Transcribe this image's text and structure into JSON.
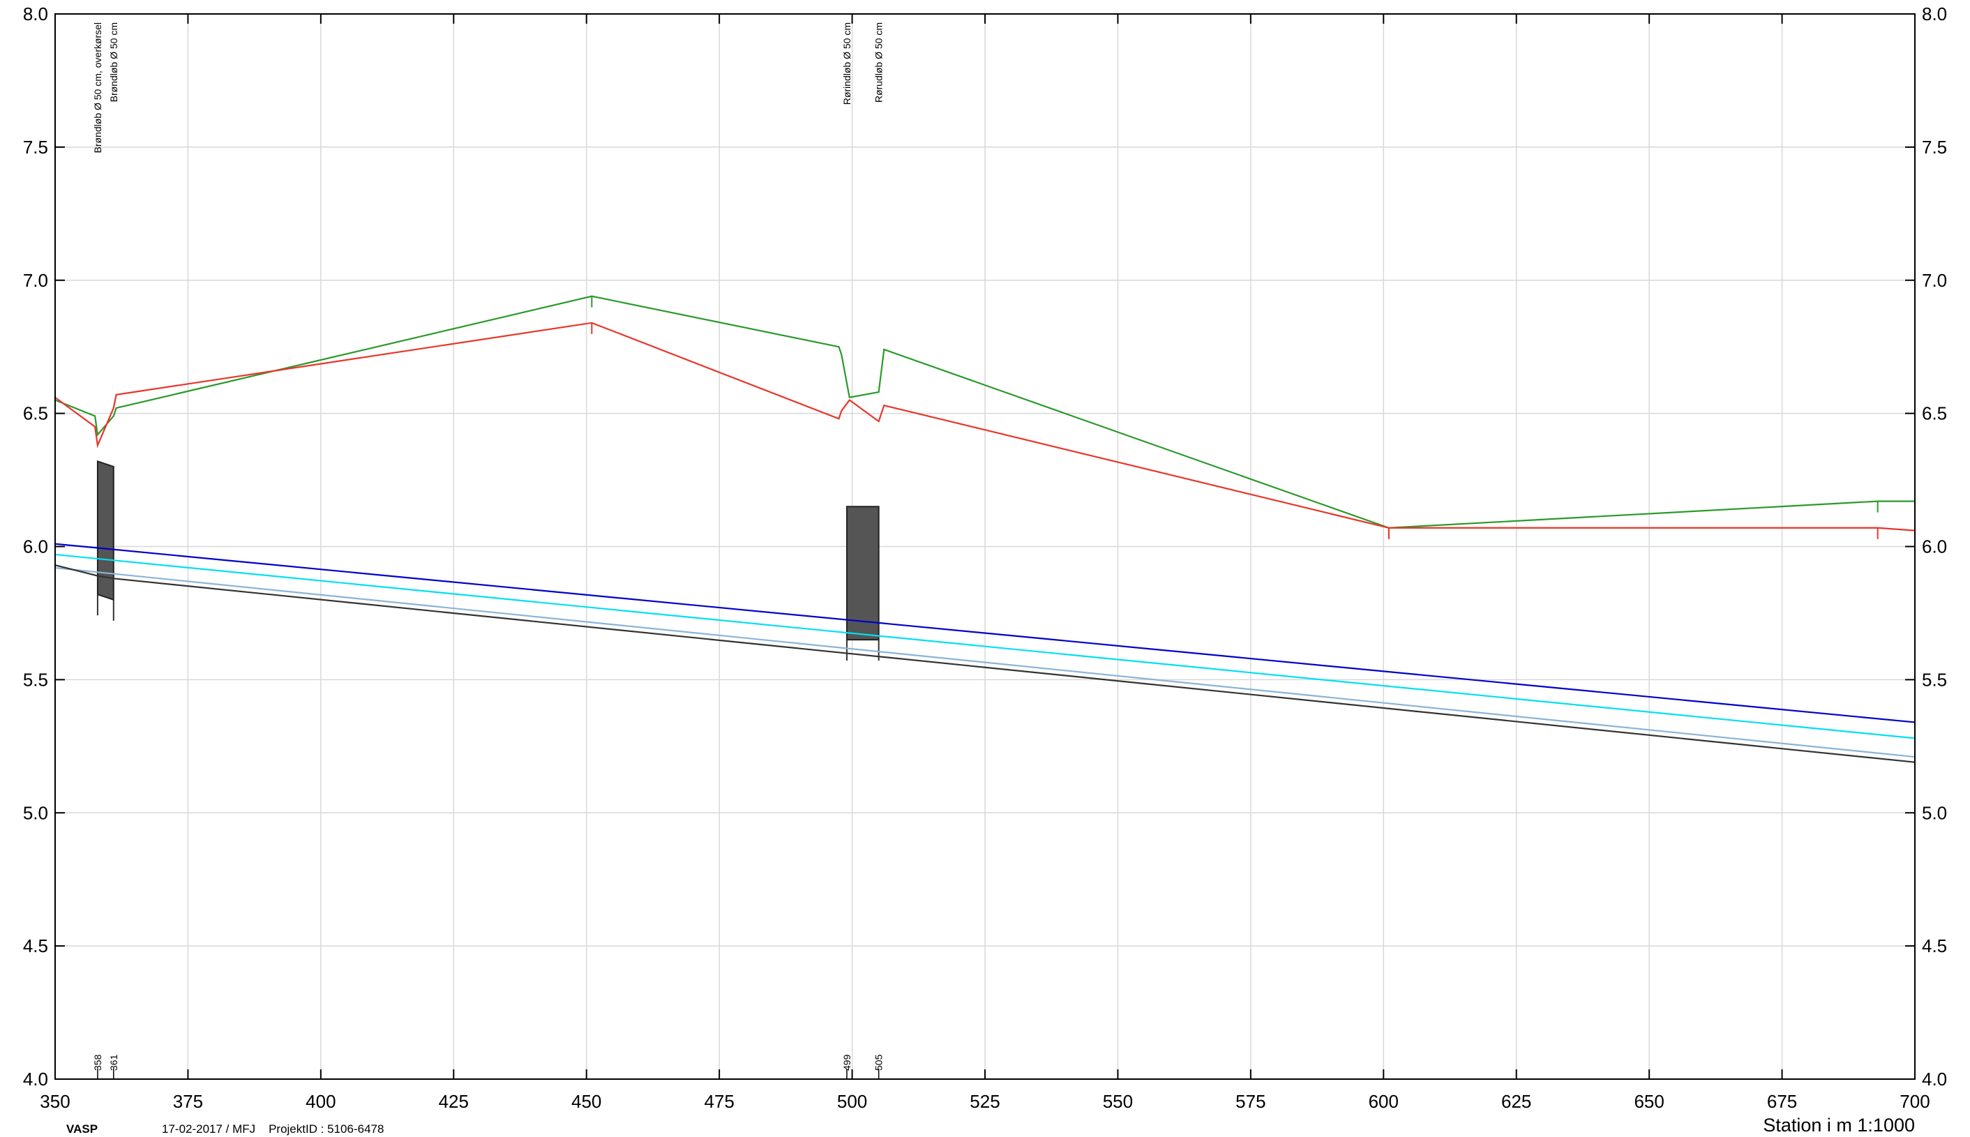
{
  "chart_data": {
    "type": "line",
    "xlabel": "Station i m  1:1000",
    "xlim": [
      350,
      700
    ],
    "ylim": [
      4.0,
      8.0
    ],
    "x_ticks": [
      "350",
      "375",
      "400",
      "425",
      "450",
      "475",
      "500",
      "525",
      "550",
      "575",
      "600",
      "625",
      "650",
      "675",
      "700"
    ],
    "y_ticks": [
      "4.0",
      "4.5",
      "5.0",
      "5.5",
      "6.0",
      "6.5",
      "7.0",
      "7.5",
      "8.0"
    ],
    "grid": true,
    "series": [
      {
        "color": "#2a9a2a",
        "points": [
          [
            350,
            6.55
          ],
          [
            357.5,
            6.49
          ],
          [
            358,
            6.42
          ],
          [
            361,
            6.49
          ],
          [
            361.5,
            6.52
          ],
          [
            451,
            6.94
          ],
          [
            497.5,
            6.75
          ],
          [
            498,
            6.72
          ],
          [
            499.5,
            6.56
          ],
          [
            505,
            6.58
          ],
          [
            506,
            6.74
          ],
          [
            601,
            6.07
          ],
          [
            693,
            6.17
          ],
          [
            700,
            6.17
          ]
        ]
      },
      {
        "color": "#e8362a",
        "points": [
          [
            350,
            6.56
          ],
          [
            357.5,
            6.45
          ],
          [
            358,
            6.38
          ],
          [
            361,
            6.52
          ],
          [
            361.5,
            6.57
          ],
          [
            451,
            6.84
          ],
          [
            497.5,
            6.48
          ],
          [
            498,
            6.51
          ],
          [
            499.5,
            6.55
          ],
          [
            505,
            6.47
          ],
          [
            506,
            6.53
          ],
          [
            601,
            6.07
          ],
          [
            693,
            6.07
          ],
          [
            700,
            6.06
          ]
        ]
      },
      {
        "color": "#0000cc",
        "points": [
          [
            350,
            6.01
          ],
          [
            700,
            5.34
          ]
        ]
      },
      {
        "color": "#00e0f0",
        "points": [
          [
            350,
            5.97
          ],
          [
            700,
            5.28
          ]
        ]
      },
      {
        "color": "#8ab4d8",
        "points": [
          [
            350,
            5.92
          ],
          [
            700,
            5.21
          ]
        ]
      },
      {
        "color": "#333333",
        "points": [
          [
            350,
            5.93
          ],
          [
            358,
            5.89
          ],
          [
            361,
            5.88
          ],
          [
            700,
            5.19
          ]
        ]
      }
    ],
    "structures": [
      {
        "x0": 358,
        "x1": 361,
        "top0": 6.32,
        "top1": 6.3,
        "bot0": 5.82,
        "bot1": 5.8
      },
      {
        "x0": 499,
        "x1": 505,
        "top0": 6.15,
        "top1": 6.15,
        "bot0": 5.65,
        "bot1": 5.65
      }
    ],
    "annotations": [
      {
        "x": 358,
        "text": "Brøndløb Ø 50 cm, overkørsel",
        "station": "358"
      },
      {
        "x": 361,
        "text": "Brøndløb Ø 50 cm",
        "station": "361"
      },
      {
        "x": 499,
        "text": "Rørindløb Ø 50 cm",
        "station": "499"
      },
      {
        "x": 505,
        "text": "Rørudløb Ø 50 cm",
        "station": "505"
      }
    ]
  },
  "footer": {
    "brand": "VASP",
    "meta": "17-02-2017 / MFJ    ProjektID : 5106-6478"
  }
}
